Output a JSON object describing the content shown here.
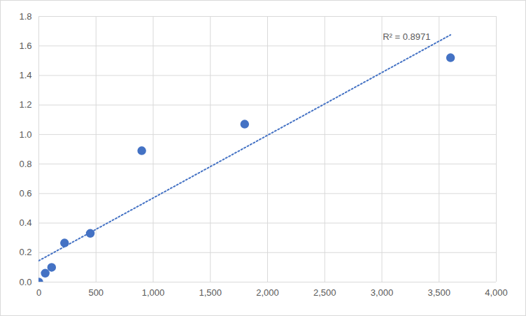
{
  "chart_data": {
    "type": "scatter",
    "x": [
      0,
      56,
      112,
      225,
      450,
      900,
      1800,
      3600
    ],
    "values": [
      0,
      0.06,
      0.1,
      0.265,
      0.33,
      0.89,
      1.07,
      1.52
    ],
    "color": "#4472c4",
    "marker": "circle",
    "trendline": {
      "x": [
        0,
        3600
      ],
      "y": [
        0.145,
        1.675
      ],
      "line_style": "dotted",
      "color": "#4472c4"
    },
    "annotations": [
      {
        "text": "R² = 0.8971",
        "x": 3216,
        "y": 1.66
      }
    ],
    "xlim": [
      0,
      4000
    ],
    "xticks": [
      0,
      500,
      1000,
      1500,
      2000,
      2500,
      3000,
      3500,
      4000
    ],
    "ylim": [
      0,
      1.8
    ],
    "yticks": [
      0,
      0.2,
      0.4,
      0.6,
      0.8,
      1,
      1.2,
      1.4,
      1.6,
      1.8
    ],
    "grid": true
  }
}
